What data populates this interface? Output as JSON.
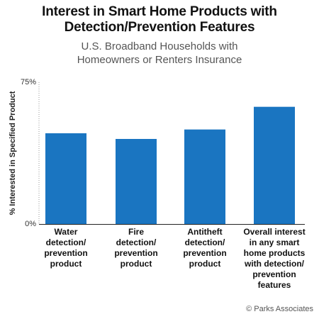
{
  "chart_data": {
    "type": "bar",
    "title_lines": [
      "Interest in Smart Home Products with",
      "Detection/Prevention Features"
    ],
    "subtitle_lines": [
      "U.S. Broadband Households with",
      "Homeowners or Renters Insurance"
    ],
    "ylabel": "% Interested in Specified Product",
    "xlabel": "",
    "ylim": [
      0,
      75
    ],
    "y_ticks": [
      {
        "value": 0,
        "label": "0%"
      },
      {
        "value": 75,
        "label": "75%"
      }
    ],
    "grid": false,
    "categories": [
      {
        "lines": [
          "Water",
          "detection/",
          "prevention",
          "product"
        ]
      },
      {
        "lines": [
          "Fire",
          "detection/",
          "prevention",
          "product"
        ]
      },
      {
        "lines": [
          "Antitheft",
          "detection/",
          "prevention",
          "product"
        ]
      },
      {
        "lines": [
          "Overall interest",
          "in any smart",
          "home products",
          "with detection/",
          "prevention",
          "features"
        ]
      }
    ],
    "values": [
      48,
      45,
      50,
      62
    ],
    "bar_color": "#1a75c1"
  },
  "credit": "© Parks Associates"
}
